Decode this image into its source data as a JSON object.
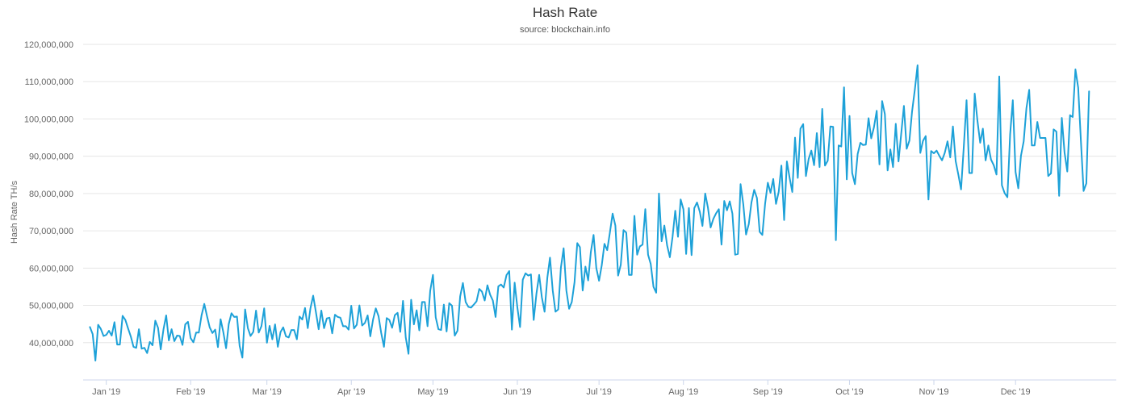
{
  "colors": {
    "line": "#1da1d8",
    "grid": "#e6e6e6",
    "axis": "#ccd6eb",
    "text": "#666666"
  },
  "chart_data": {
    "type": "line",
    "title": "Hash Rate",
    "subtitle": "source: blockchain.info",
    "ylabel": "Hash Rate TH/s",
    "xlabel": "",
    "ylim": [
      30000000,
      120000000
    ],
    "grid": true,
    "legend": "none",
    "y_ticks": [
      "40,000,000",
      "50,000,000",
      "60,000,000",
      "70,000,000",
      "80,000,000",
      "90,000,000",
      "100,000,000",
      "110,000,000",
      "120,000,000"
    ],
    "x_ticks": [
      "Jan '19",
      "Feb '19",
      "Mar '19",
      "Apr '19",
      "May '19",
      "Jun '19",
      "Jul '19",
      "Aug '19",
      "Sep '19",
      "Oct '19",
      "Nov '19",
      "Dec '19"
    ],
    "x_start": "2018-12-26",
    "series": [
      {
        "values": [
          44.2,
          42.3,
          35.2,
          44.8,
          43.7,
          41.8,
          42.1,
          43.2,
          41.9,
          45.5,
          39.5,
          39.5,
          47.2,
          46.1,
          43.8,
          41.7,
          38.9,
          38.6,
          43.6,
          38.4,
          38.6,
          37.2,
          40.2,
          39.3,
          45.9,
          44.0,
          38.2,
          43.5,
          47.3,
          40.6,
          43.6,
          40.4,
          41.9,
          41.8,
          39.4,
          44.9,
          45.6,
          41.2,
          40.1,
          42.7,
          42.7,
          47.3,
          50.4,
          47.1,
          44.1,
          42.6,
          43.5,
          38.8,
          46.3,
          42.8,
          38.5,
          45.0,
          47.9,
          46.9,
          47.0,
          39.1,
          36.0,
          48.9,
          43.9,
          41.8,
          42.9,
          48.6,
          42.7,
          44.4,
          49.2,
          40.0,
          44.5,
          40.9,
          44.9,
          38.9,
          42.8,
          44.1,
          41.7,
          41.4,
          43.4,
          43.4,
          40.9,
          47.0,
          46.2,
          49.3,
          43.9,
          49.2,
          52.6,
          48.2,
          43.6,
          48.6,
          43.9,
          46.5,
          46.7,
          42.5,
          47.5,
          46.9,
          46.7,
          44.4,
          44.4,
          43.5,
          49.9,
          43.8,
          44.8,
          50.0,
          44.6,
          45.3,
          47.3,
          41.7,
          46.2,
          49.2,
          47.1,
          42.6,
          38.9,
          46.6,
          46.1,
          44.0,
          47.4,
          48.0,
          42.9,
          51.2,
          41.4,
          37.0,
          51.5,
          44.9,
          48.7,
          43.3,
          50.9,
          50.9,
          44.4,
          53.9,
          58.2,
          46.8,
          43.6,
          43.4,
          50.2,
          43.0,
          50.6,
          49.9,
          41.9,
          43.2,
          52.4,
          56.0,
          50.9,
          49.6,
          49.4,
          50.2,
          51.1,
          54.4,
          53.7,
          51.3,
          55.4,
          52.9,
          51.3,
          46.9,
          55.1,
          55.6,
          54.8,
          58.1,
          59.2,
          43.5,
          56.1,
          49.4,
          44.2,
          56.9,
          58.6,
          58.0,
          58.3,
          46.1,
          53.1,
          58.2,
          52.2,
          48.3,
          57.4,
          62.8,
          54.0,
          48.3,
          48.9,
          60.1,
          65.3,
          54.0,
          49.1,
          50.9,
          56.2,
          66.7,
          65.6,
          54.0,
          60.4,
          56.7,
          64.3,
          68.9,
          60.0,
          56.6,
          60.7,
          66.5,
          64.8,
          69.5,
          74.6,
          71.4,
          58.0,
          60.9,
          70.2,
          69.5,
          58.2,
          58.2,
          74.0,
          63.6,
          65.8,
          66.3,
          75.8,
          63.6,
          61.1,
          55.0,
          53.4,
          80.0,
          67.2,
          71.4,
          66.1,
          62.9,
          68.3,
          75.4,
          68.4,
          78.4,
          75.8,
          63.8,
          76.1,
          63.5,
          76.1,
          77.6,
          75.1,
          71.3,
          80.0,
          76.2,
          70.9,
          73.2,
          74.7,
          75.8,
          66.3,
          78.0,
          75.5,
          77.9,
          74.6,
          63.6,
          63.8,
          82.5,
          77.1,
          69.0,
          71.8,
          77.6,
          81.0,
          78.8,
          69.7,
          68.9,
          77.2,
          82.9,
          80.2,
          83.9,
          77.2,
          80.5,
          87.5,
          72.9,
          88.6,
          84.2,
          80.4,
          95.0,
          84.2,
          97.4,
          98.6,
          84.7,
          89.3,
          91.5,
          87.6,
          96.2,
          87.1,
          102.7,
          87.5,
          88.8,
          98.0,
          97.9,
          67.5,
          92.9,
          92.6,
          108.5,
          83.8,
          100.8,
          85.5,
          82.5,
          90.6,
          93.6,
          93.0,
          93.1,
          100.2,
          94.8,
          97.8,
          102.2,
          87.8,
          104.8,
          101.3,
          86.2,
          91.8,
          87.1,
          98.7,
          88.6,
          95.9,
          103.5,
          92.0,
          94.2,
          102.0,
          107.8,
          114.4,
          90.9,
          94.1,
          95.4,
          78.4,
          91.4,
          90.8,
          91.5,
          90.1,
          88.9,
          90.9,
          94.0,
          89.7,
          98.0,
          88.7,
          85.0,
          81.1,
          92.6,
          105.0,
          85.5,
          85.5,
          106.8,
          99.5,
          93.6,
          97.4,
          88.9,
          92.9,
          89.1,
          87.6,
          85.1,
          111.4,
          82.2,
          80.1,
          79.0,
          95.9,
          105.0,
          85.8,
          81.4,
          90.1,
          94.0,
          102.9,
          107.8,
          92.9,
          92.9,
          99.2,
          94.9,
          94.9,
          94.9,
          84.7,
          85.4,
          97.2,
          96.6,
          79.4,
          100.3,
          91.0,
          85.9,
          101.0,
          100.5,
          113.3,
          108.4,
          94.0,
          80.7,
          82.7,
          107.4
        ]
      }
    ]
  }
}
